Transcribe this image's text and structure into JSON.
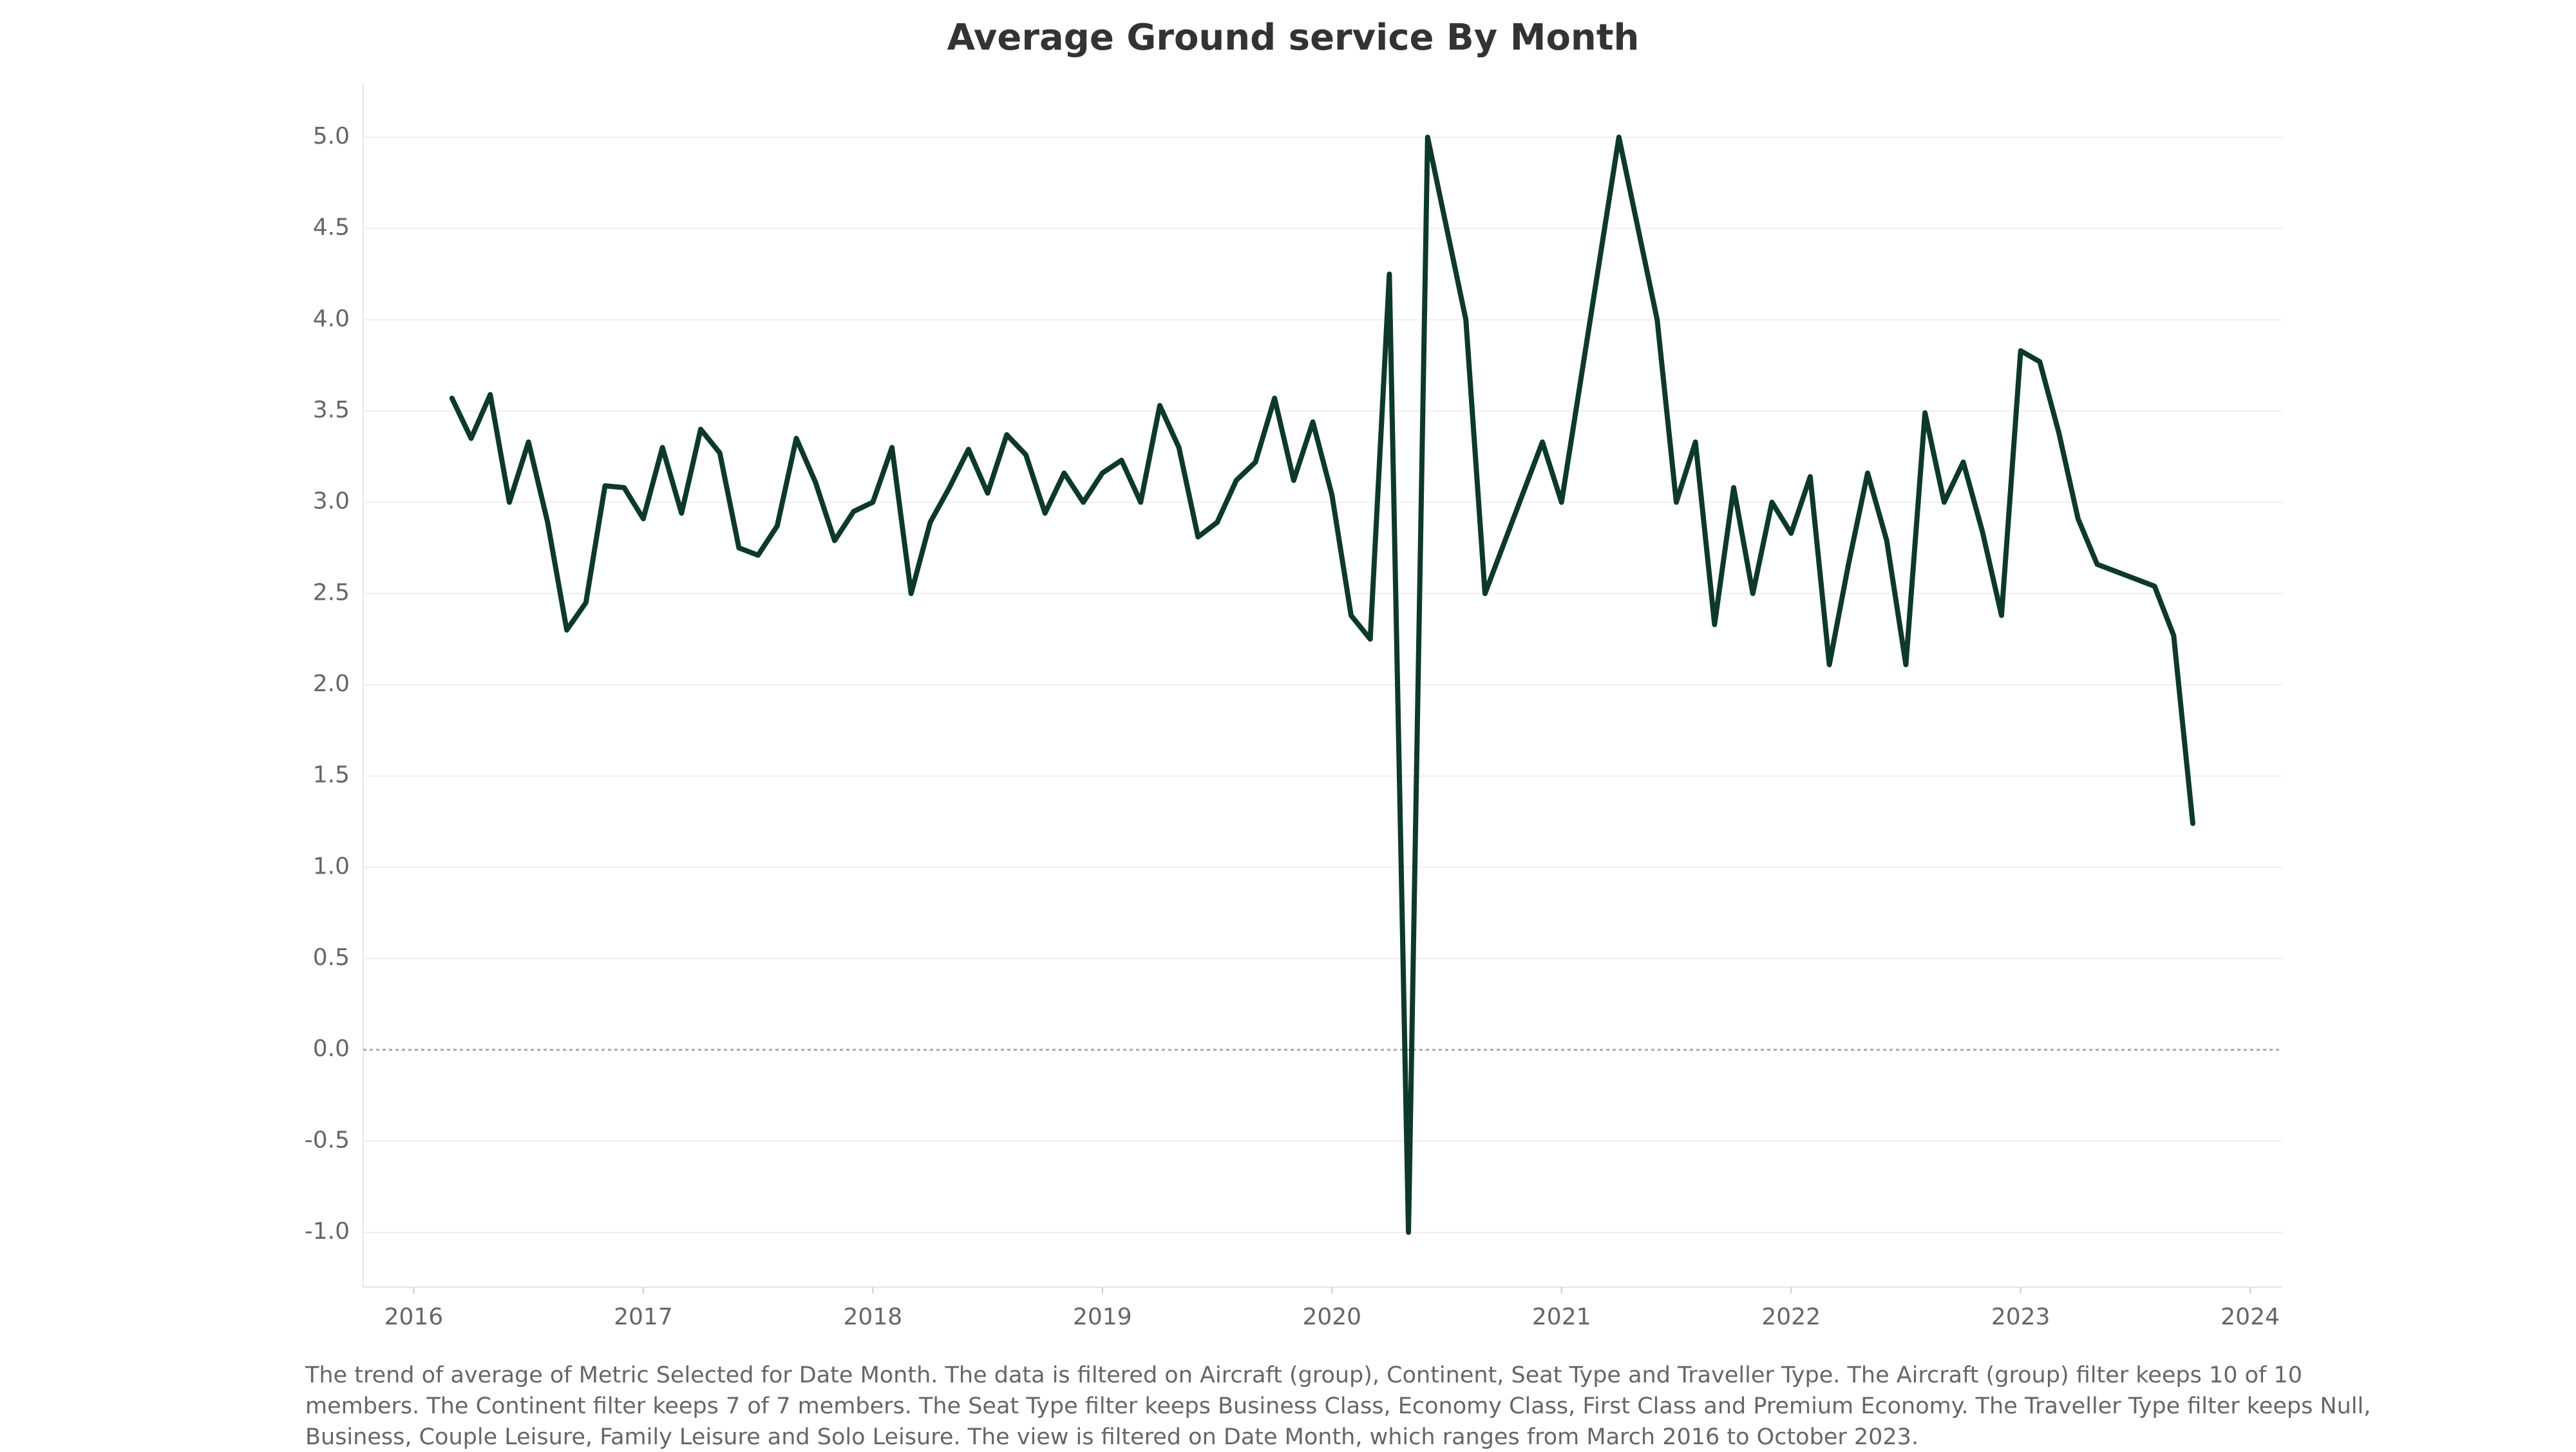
{
  "chart_data": {
    "type": "line",
    "title": "Average Ground service By Month",
    "x": [
      "2016-03",
      "2016-04",
      "2016-05",
      "2016-06",
      "2016-07",
      "2016-08",
      "2016-09",
      "2016-10",
      "2016-11",
      "2016-12",
      "2017-01",
      "2017-02",
      "2017-03",
      "2017-04",
      "2017-05",
      "2017-06",
      "2017-07",
      "2017-08",
      "2017-09",
      "2017-10",
      "2017-11",
      "2017-12",
      "2018-01",
      "2018-02",
      "2018-03",
      "2018-04",
      "2018-05",
      "2018-06",
      "2018-07",
      "2018-08",
      "2018-09",
      "2018-10",
      "2018-11",
      "2018-12",
      "2019-01",
      "2019-02",
      "2019-03",
      "2019-04",
      "2019-05",
      "2019-06",
      "2019-07",
      "2019-08",
      "2019-09",
      "2019-10",
      "2019-11",
      "2019-12",
      "2020-01",
      "2020-02",
      "2020-03",
      "2020-04",
      "2020-05",
      "2020-06",
      "2020-08",
      "2020-09",
      "2020-12",
      "2021-01",
      "2021-04",
      "2021-06",
      "2021-07",
      "2021-08",
      "2021-09",
      "2021-10",
      "2021-11",
      "2021-12",
      "2022-01",
      "2022-02",
      "2022-03",
      "2022-04",
      "2022-05",
      "2022-06",
      "2022-07",
      "2022-08",
      "2022-09",
      "2022-10",
      "2022-11",
      "2022-12",
      "2023-01",
      "2023-02",
      "2023-03",
      "2023-04",
      "2023-05",
      "2023-08",
      "2023-09",
      "2023-10"
    ],
    "series": [
      {
        "name": "Average Ground service",
        "color": "#0d3a28",
        "values": [
          3.57,
          3.35,
          3.59,
          3.0,
          3.33,
          2.89,
          2.3,
          2.45,
          3.09,
          3.08,
          2.91,
          3.3,
          2.94,
          3.4,
          3.27,
          2.75,
          2.71,
          2.87,
          3.35,
          3.11,
          2.79,
          2.95,
          3.0,
          3.3,
          2.5,
          2.89,
          3.08,
          3.29,
          3.05,
          3.37,
          3.26,
          2.94,
          3.16,
          3.0,
          3.16,
          3.23,
          3.0,
          3.53,
          3.3,
          2.81,
          2.89,
          3.12,
          3.22,
          3.57,
          3.12,
          3.44,
          3.04,
          2.38,
          2.25,
          4.25,
          -1.0,
          5.0,
          4.0,
          2.5,
          3.33,
          3.0,
          5.0,
          4.0,
          3.0,
          3.33,
          2.33,
          3.08,
          2.5,
          3.0,
          2.83,
          3.14,
          2.11,
          2.66,
          3.16,
          2.79,
          2.11,
          3.49,
          3.0,
          3.22,
          2.84,
          2.38,
          3.83,
          3.77,
          3.38,
          2.91,
          2.66,
          2.54,
          2.27,
          1.24
        ]
      }
    ],
    "xlim": [
      2015.78,
      2024.14
    ],
    "xticks": [
      2016,
      2017,
      2018,
      2019,
      2020,
      2021,
      2022,
      2023,
      2024
    ],
    "ylim": [
      -1.3,
      5.3
    ],
    "yticks": [
      {
        "value": -1,
        "label": "-1.0"
      },
      -0.5,
      {
        "value": 0,
        "label": "0.0"
      },
      0.5,
      {
        "value": 1,
        "label": "1.0"
      },
      1.5,
      {
        "value": 2,
        "label": "2.0"
      },
      2.5,
      {
        "value": 3,
        "label": "3.0"
      },
      3.5,
      {
        "value": 4,
        "label": "4.0"
      },
      4.5,
      {
        "value": 5,
        "label": "5.0"
      }
    ],
    "grid": true,
    "caption": [
      "The trend of average of Metric Selected for Date Month. The data is filtered on Aircraft (group), Continent, Seat Type and Traveller Type. The Aircraft (group) filter keeps 10 of 10",
      "members. The Continent filter keeps 7 of 7 members. The Seat Type filter keeps Business Class, Economy Class, First Class and Premium Economy. The Traveller Type filter keeps Null,",
      "Business, Couple Leisure, Family Leisure and Solo Leisure. The view is filtered on Date Month, which ranges from March 2016 to October 2023."
    ]
  }
}
